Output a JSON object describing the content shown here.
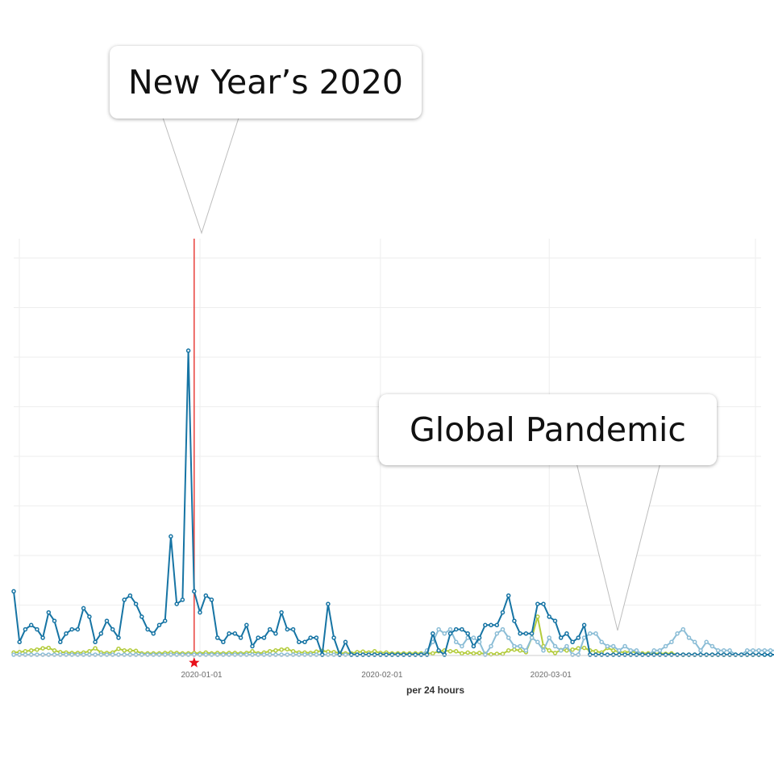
{
  "colors": {
    "series_dark": "#1674a4",
    "series_light": "#8bbdd6",
    "series_green": "#b4cc3c",
    "marker_line": "#e8403a",
    "marker_star": "#e8101a",
    "grid": "#eeeeee"
  },
  "annotations": [
    {
      "text": "New Year’s 2020",
      "points_to": "2019-12-31"
    },
    {
      "text": "Global Pandemic",
      "points_to": "2020-03-26"
    }
  ],
  "marker": {
    "date": "2019-12-31",
    "icon": "star-icon"
  },
  "chart_data": {
    "type": "line",
    "xlabel": "per 24 hours",
    "x_ticks": [
      "2020-01-01",
      "2020-02-01",
      "2020-03-01"
    ],
    "x_start": "2019-11-30",
    "ylim": [
      0,
      84
    ],
    "grid": true,
    "series": [
      {
        "color_key": "series_dark",
        "values": [
          15,
          3,
          6,
          7,
          6,
          4,
          10,
          8,
          3,
          5,
          6,
          6,
          11,
          9,
          3,
          5,
          8,
          6,
          4,
          13,
          14,
          12,
          9,
          6,
          5,
          7,
          8,
          28,
          12,
          13,
          72,
          15,
          10,
          14,
          13,
          4,
          3,
          5,
          5,
          4,
          7,
          2,
          4,
          4,
          6,
          5,
          10,
          6,
          6,
          3,
          3,
          4,
          4,
          0,
          12,
          4,
          0,
          3,
          0,
          0,
          0,
          0,
          0,
          0,
          0,
          0,
          0,
          0,
          0,
          0,
          0,
          0,
          5,
          1,
          0,
          5,
          6,
          6,
          5,
          2,
          4,
          7,
          7,
          7,
          10,
          14,
          8,
          5,
          5,
          5,
          12,
          12,
          9,
          8,
          4,
          5,
          3,
          4,
          7,
          0,
          0,
          0,
          0,
          0,
          0,
          0,
          0,
          0,
          0,
          0,
          0,
          0,
          0,
          0,
          0,
          0,
          0,
          0,
          0,
          0,
          0,
          0,
          0,
          0,
          0,
          0,
          0,
          0,
          0,
          0,
          0,
          0,
          0,
          0,
          0,
          0,
          0,
          0,
          0,
          0
        ]
      },
      {
        "color_key": "series_green",
        "values": [
          0.5,
          0.6,
          0.8,
          1.0,
          1.2,
          1.5,
          1.6,
          1.0,
          0.6,
          0.5,
          0.4,
          0.4,
          0.5,
          0.8,
          1.5,
          0.5,
          0.4,
          0.5,
          1.4,
          1.0,
          1.0,
          0.9,
          0.3,
          0.3,
          0.3,
          0.3,
          0.4,
          0.5,
          0.4,
          0.3,
          0.3,
          0.4,
          0.3,
          0.5,
          0.3,
          0.4,
          0.3,
          0.4,
          0.4,
          0.3,
          0.4,
          0.8,
          0.3,
          0.5,
          0.8,
          1.0,
          1.2,
          1.3,
          0.8,
          0.5,
          0.5,
          0.4,
          0.7,
          0.9,
          0.7,
          0.6,
          0.4,
          0.3,
          0.3,
          0.6,
          0.7,
          0.5,
          0.8,
          0.4,
          0.5,
          0.3,
          0.3,
          0.3,
          0.3,
          0.3,
          0.3,
          0.3,
          0.3,
          0.8,
          1.0,
          0.8,
          0.8,
          0.3,
          0.3,
          0.5,
          1.4,
          1.0,
          0.6,
          0.4,
          0.3,
          0.2,
          0.2,
          0.2,
          0.2,
          0.2,
          1.5,
          0,
          0,
          0,
          0,
          0,
          0,
          0,
          0,
          0,
          0,
          0,
          0,
          0,
          0,
          0,
          0,
          0,
          0,
          0,
          0,
          0,
          0,
          0,
          0,
          0,
          0,
          0,
          0,
          0,
          0,
          0,
          0,
          0,
          0,
          0,
          0,
          0,
          0,
          0,
          0,
          0,
          0,
          0,
          0,
          0,
          0,
          0,
          0,
          0
        ],
        "values_tail": {
          "start_index": 78,
          "values": [
            0.5,
            0.3,
            0.4,
            0.2,
            0.1,
            0.2,
            0.2,
            1.0,
            1.2,
            1.0,
            0.6,
            4.0,
            9.0,
            2.0,
            1.0,
            0.4,
            1.1,
            1.0,
            1.2,
            1.5,
            1.6,
            1.0,
            0.8,
            0.5,
            1.6,
            1.0,
            0.7,
            0.5,
            0.8,
            0.5,
            0.3,
            0.3,
            0.2,
            0.3,
            0.2,
            0.3
          ]
        }
      },
      {
        "color_key": "series_light",
        "values": [
          0,
          0,
          0,
          0,
          0,
          0,
          0,
          0,
          0,
          0,
          0,
          0,
          0,
          0,
          0,
          0,
          0,
          0,
          0,
          0,
          0,
          0,
          0,
          0,
          0,
          0,
          0,
          0,
          0,
          0,
          0,
          0,
          0,
          0,
          0,
          0,
          0,
          0,
          0,
          0,
          0,
          0,
          0,
          0,
          0,
          0,
          0,
          0,
          0,
          0,
          0,
          0,
          0,
          0,
          0,
          0,
          0,
          0,
          0,
          0,
          0,
          0,
          0,
          0,
          0,
          0,
          0,
          0,
          0,
          0,
          0,
          0,
          0,
          0,
          0,
          0,
          0,
          0,
          0,
          0,
          0,
          0,
          0,
          0,
          0,
          0,
          0,
          0,
          0,
          0,
          0,
          0,
          0,
          0,
          0,
          0,
          0,
          0,
          0,
          0,
          0,
          0,
          0,
          0,
          0,
          0,
          0,
          0,
          0,
          0,
          0,
          0,
          0,
          0,
          0,
          0,
          0,
          0,
          0,
          0,
          0,
          0,
          0,
          0,
          0,
          0,
          0,
          0,
          0,
          0,
          0,
          0,
          0,
          0,
          0,
          0,
          0,
          0,
          0,
          0
        ],
        "values_tail": {
          "start_index": 68,
          "values": [
            0,
            0,
            0,
            1,
            3,
            6,
            5,
            6,
            3,
            2,
            4,
            4,
            3,
            0,
            2,
            5,
            6,
            4,
            2,
            2,
            1,
            4,
            3,
            1,
            4,
            2,
            1,
            2,
            0,
            0,
            4,
            5,
            5,
            3,
            2,
            2,
            1,
            2,
            1,
            1,
            0,
            0,
            1,
            1,
            2,
            3,
            5,
            6,
            4,
            3,
            1,
            3,
            2,
            1,
            1,
            1,
            0,
            0,
            1,
            1,
            1,
            1,
            1,
            1,
            1,
            1,
            1,
            1,
            1,
            1,
            1
          ]
        }
      }
    ]
  }
}
